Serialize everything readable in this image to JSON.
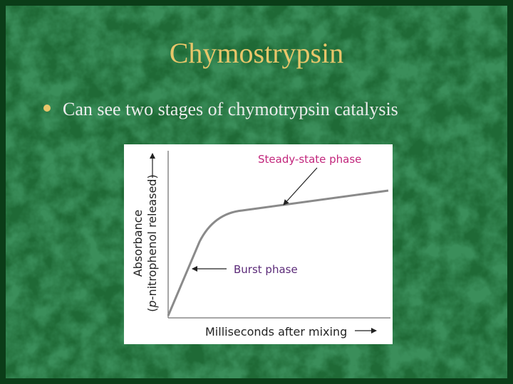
{
  "slide": {
    "title": "Chymostrypsin",
    "bullets": [
      "Can see two stages of chymotrypsin catalysis"
    ],
    "figure": {
      "y_label_line1": "Absorbance",
      "y_label_line2": [
        "(",
        "p",
        "-nitrophenol released)"
      ],
      "x_label": "Milliseconds after mixing",
      "annotations": [
        "Steady-state phase",
        "Burst phase"
      ]
    }
  }
}
